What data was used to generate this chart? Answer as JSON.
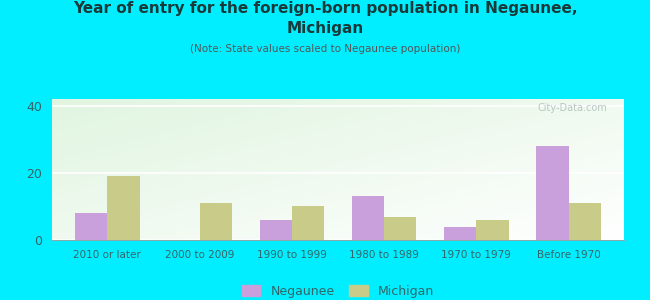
{
  "title_line1": "Year of entry for the foreign-born population in Negaunee,",
  "title_line2": "Michigan",
  "subtitle": "(Note: State values scaled to Negaunee population)",
  "categories": [
    "2010 or later",
    "2000 to 2009",
    "1990 to 1999",
    "1980 to 1989",
    "1970 to 1979",
    "Before 1970"
  ],
  "negaunee": [
    8,
    0,
    6,
    13,
    4,
    28
  ],
  "michigan": [
    19,
    11,
    10,
    7,
    6,
    11
  ],
  "negaunee_color": "#c9a0dc",
  "michigan_color": "#c8cc88",
  "ylim": [
    0,
    42
  ],
  "yticks": [
    0,
    20,
    40
  ],
  "background_outer": "#00eeff",
  "watermark": "City-Data.com",
  "bar_width": 0.35,
  "legend_negaunee": "Negaunee",
  "legend_michigan": "Michigan",
  "title_color": "#1a3a3a",
  "subtitle_color": "#555555",
  "tick_color": "#336666"
}
